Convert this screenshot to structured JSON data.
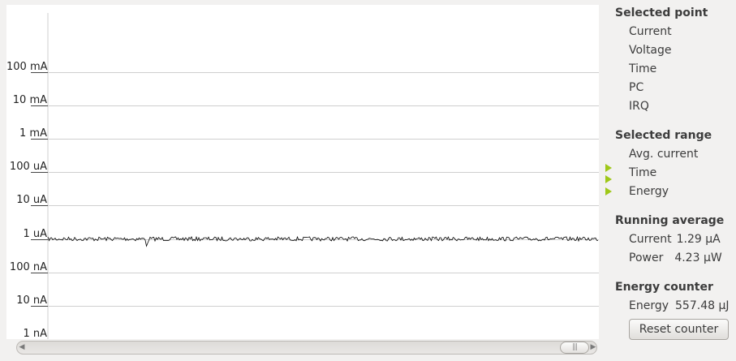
{
  "y_axis": {
    "tick_labels": [
      "100 mA",
      "10 mA",
      "1 mA",
      "100 uA",
      "10 uA",
      "1 uA",
      "100 nA",
      "10 nA",
      "1 nA"
    ]
  },
  "trace": {
    "level_label": "1 uA",
    "color": "#000000"
  },
  "side_panel": {
    "selected_point": {
      "title": "Selected point",
      "rows": [
        "Current",
        "Voltage",
        "Time",
        "PC",
        "IRQ"
      ]
    },
    "selected_range": {
      "title": "Selected range",
      "rows": [
        "Avg. current",
        "Time",
        "Energy"
      ],
      "arrow_color": "#9fc818"
    },
    "running_average": {
      "title": "Running average",
      "current_label": "Current",
      "current_value": "1.29 µA",
      "power_label": "Power",
      "power_value": "4.23 µW"
    },
    "energy_counter": {
      "title": "Energy counter",
      "energy_label": "Energy",
      "energy_value": "557.48 µJ",
      "reset_label": "Reset counter"
    }
  },
  "scrollbar": {
    "left_arrow": "◀",
    "right_arrow": "▶",
    "thumb_grip": "|||"
  }
}
